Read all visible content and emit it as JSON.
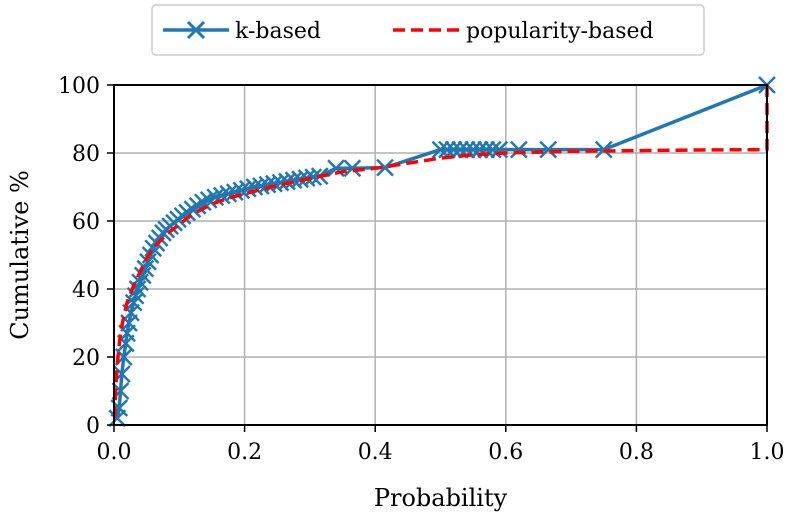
{
  "chart_data": {
    "type": "line",
    "xlabel": "Probability",
    "ylabel": "Cumulative %",
    "xlim": [
      0.0,
      1.0
    ],
    "ylim": [
      0,
      100
    ],
    "xticks": [
      "0.0",
      "0.2",
      "0.4",
      "0.6",
      "0.8",
      "1.0"
    ],
    "yticks": [
      "0",
      "20",
      "40",
      "60",
      "80",
      "100"
    ],
    "grid": true,
    "legend_position": "top-center",
    "series": [
      {
        "name": "k-based",
        "color": "#1f77b4",
        "style": "solid",
        "marker": "x",
        "x": [
          0.005,
          0.008,
          0.01,
          0.012,
          0.015,
          0.018,
          0.02,
          0.023,
          0.026,
          0.03,
          0.033,
          0.036,
          0.04,
          0.044,
          0.048,
          0.052,
          0.056,
          0.06,
          0.065,
          0.07,
          0.075,
          0.08,
          0.086,
          0.092,
          0.098,
          0.105,
          0.112,
          0.12,
          0.128,
          0.136,
          0.145,
          0.155,
          0.165,
          0.175,
          0.185,
          0.195,
          0.205,
          0.215,
          0.225,
          0.235,
          0.245,
          0.255,
          0.265,
          0.275,
          0.285,
          0.295,
          0.305,
          0.315,
          0.34,
          0.365,
          0.415,
          0.5,
          0.51,
          0.52,
          0.53,
          0.54,
          0.55,
          0.56,
          0.57,
          0.58,
          0.59,
          0.62,
          0.665,
          0.75,
          1.0
        ],
        "values": [
          2,
          5,
          10,
          15,
          20,
          24,
          27,
          30,
          33,
          36,
          38,
          40,
          42,
          44,
          46,
          48,
          50,
          52,
          53.5,
          55,
          56.5,
          57.5,
          58.5,
          59.5,
          60.5,
          61.5,
          62.5,
          63.5,
          64.5,
          65.5,
          66.2,
          67,
          67.5,
          68,
          68.5,
          69,
          69.5,
          70,
          70.3,
          70.7,
          71,
          71.3,
          71.6,
          72,
          72.3,
          72.6,
          72.9,
          73.2,
          75.5,
          75.5,
          75.7,
          81,
          81,
          81,
          81,
          81,
          81,
          81,
          81,
          81,
          81,
          81,
          81,
          81,
          100
        ]
      },
      {
        "name": "popularity-based",
        "color": "#ff0000",
        "style": "dashed",
        "marker": "none",
        "x": [
          0.001,
          0.003,
          0.006,
          0.01,
          0.015,
          0.02,
          0.03,
          0.04,
          0.05,
          0.06,
          0.08,
          0.1,
          0.12,
          0.15,
          0.18,
          0.2,
          0.25,
          0.3,
          0.35,
          0.4,
          0.45,
          0.5,
          0.55,
          0.6,
          0.7,
          0.8,
          0.9,
          0.995,
          1.0,
          1.0
        ],
        "values": [
          2,
          12,
          20,
          27,
          32,
          36,
          41,
          45,
          49,
          52,
          56,
          59,
          62,
          65,
          67,
          68,
          70.5,
          72.5,
          74.5,
          75.5,
          77,
          78.5,
          79.5,
          80,
          80.5,
          80.7,
          80.9,
          81,
          81,
          100
        ]
      }
    ]
  }
}
